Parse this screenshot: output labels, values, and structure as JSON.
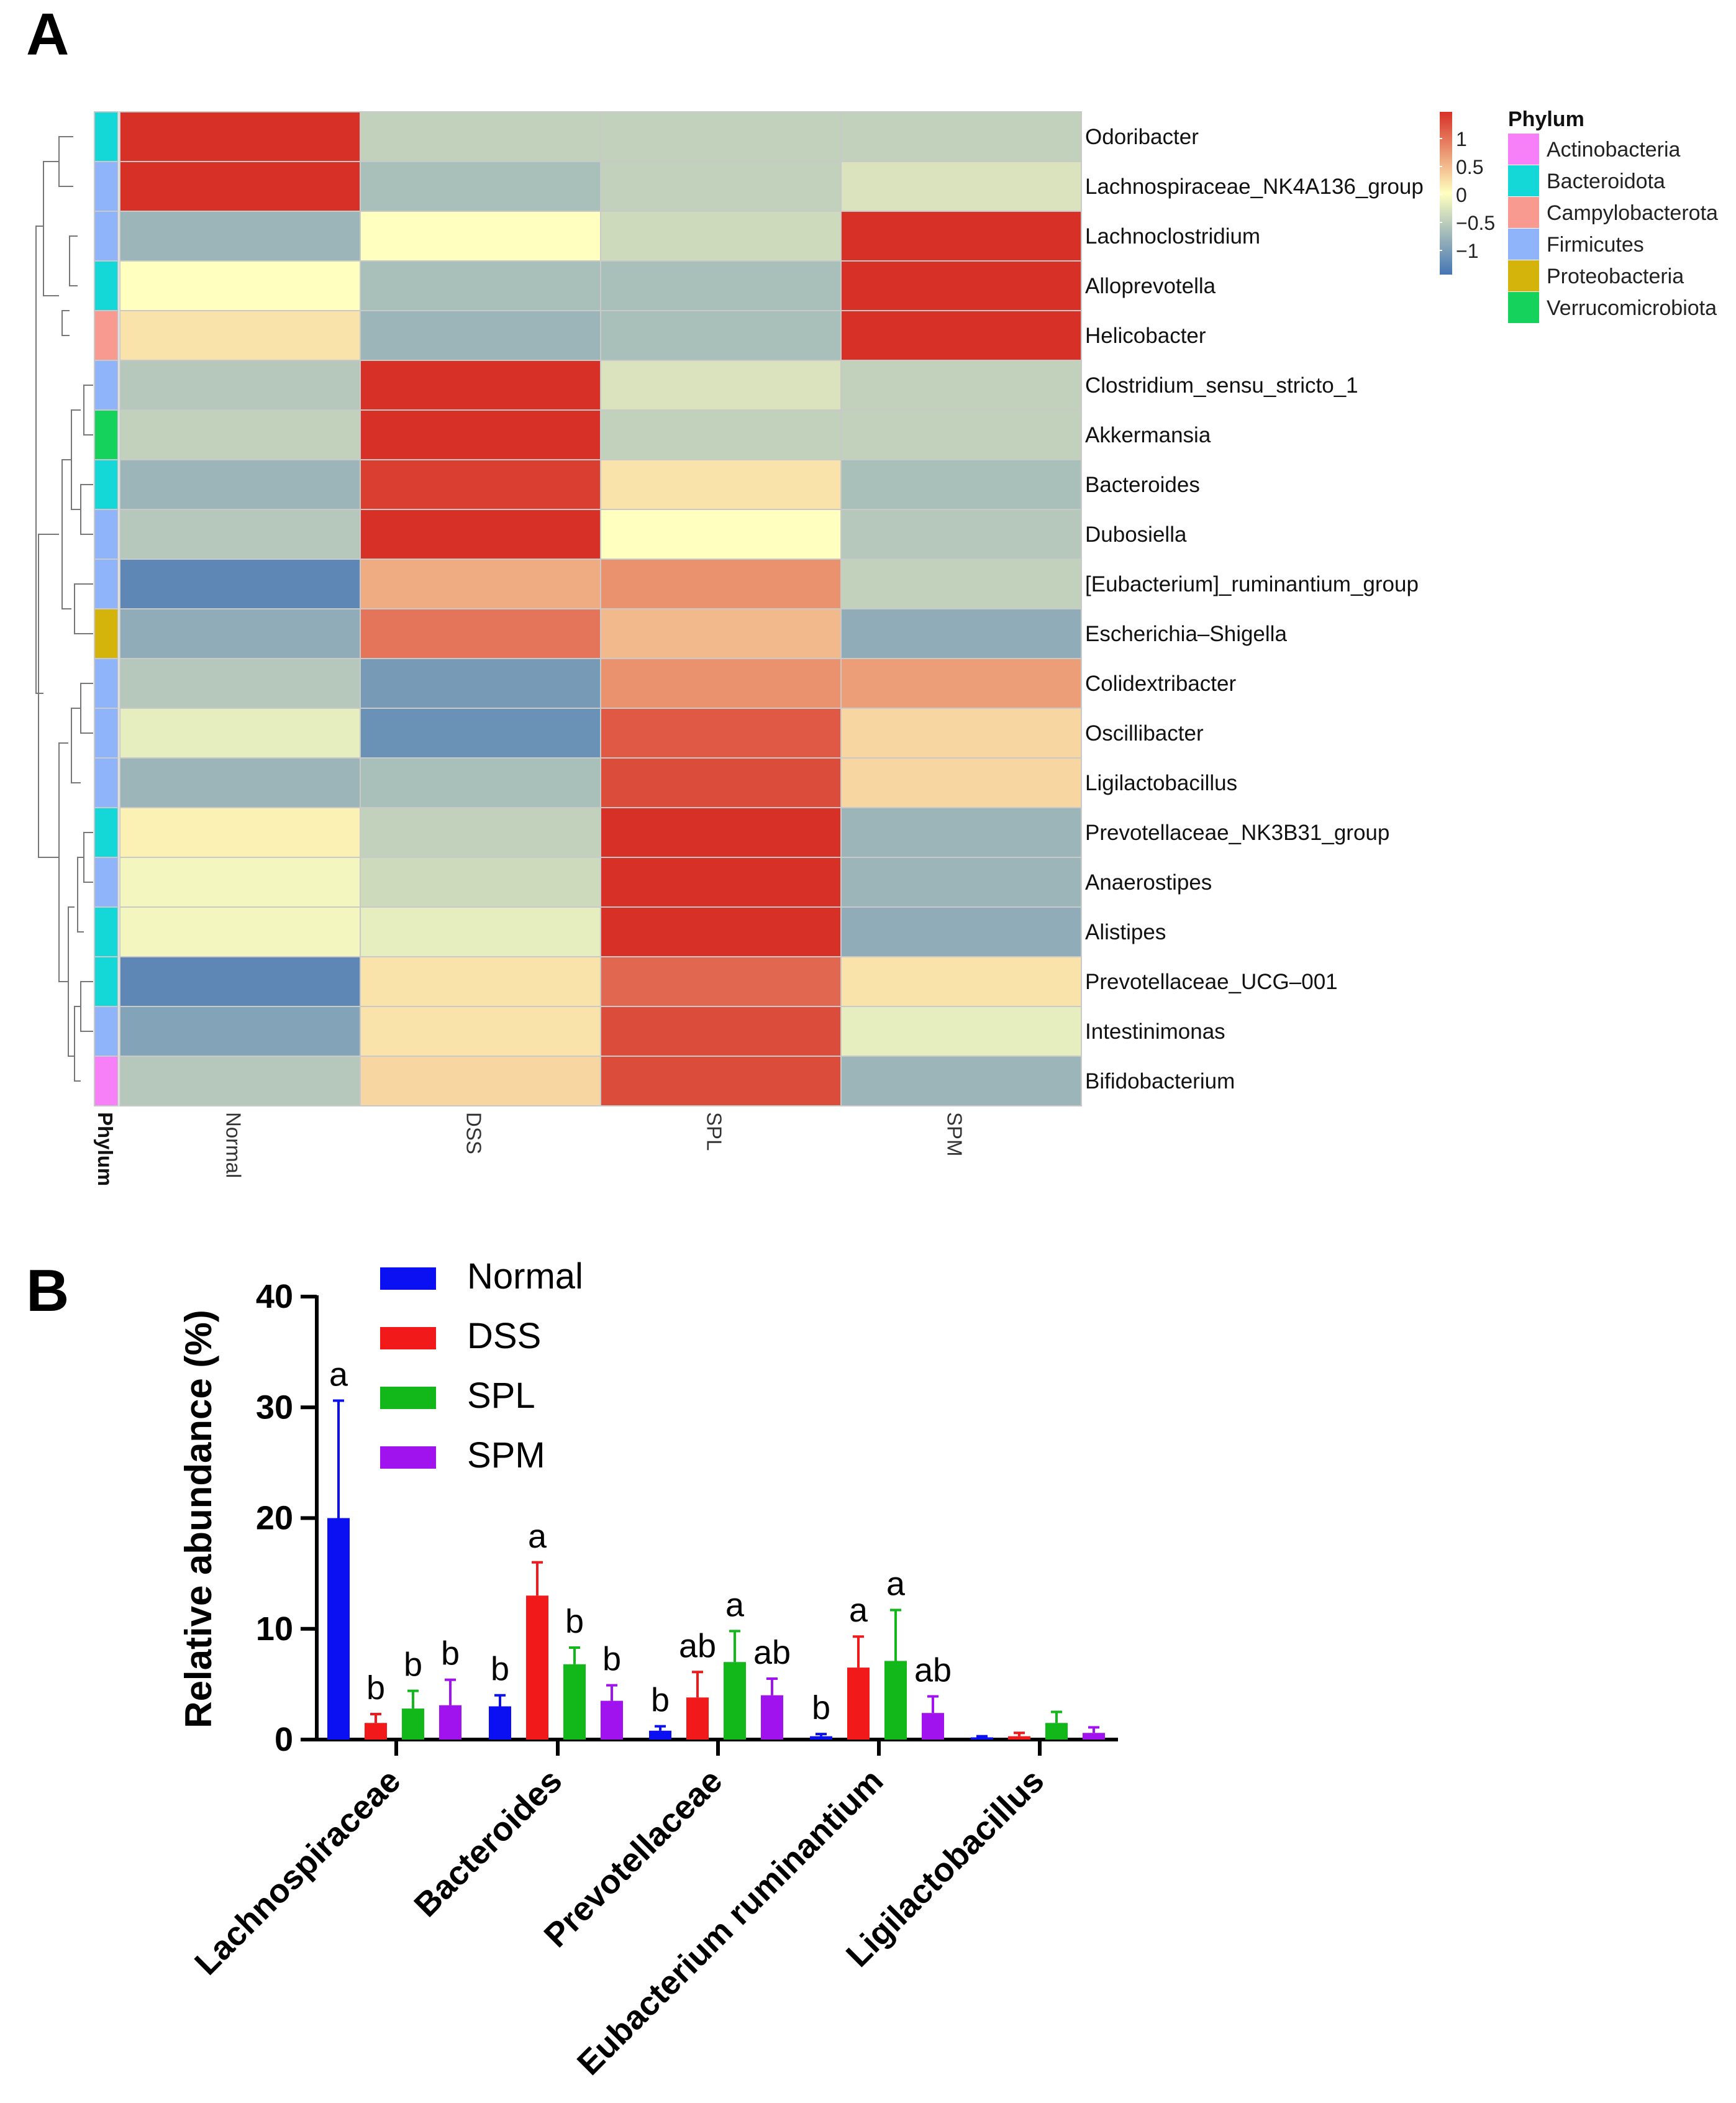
{
  "panel_a_label": "A",
  "panel_b_label": "B",
  "chart_data": [
    {
      "type": "heatmap",
      "columns": [
        "Normal",
        "DSS",
        "SPL",
        "SPM"
      ],
      "column_axis_title": "Phylum",
      "rows": [
        {
          "genus": "Odoribacter",
          "phylum": "Bacteroidota",
          "values": [
            1.5,
            -0.5,
            -0.5,
            -0.5
          ]
        },
        {
          "genus": "Lachnospiraceae_NK4A136_group",
          "phylum": "Firmicutes",
          "values": [
            1.5,
            -0.7,
            -0.5,
            -0.3
          ]
        },
        {
          "genus": "Lachnoclostridium",
          "phylum": "Firmicutes",
          "values": [
            -0.8,
            0.0,
            -0.4,
            1.5
          ]
        },
        {
          "genus": "Alloprevotella",
          "phylum": "Bacteroidota",
          "values": [
            0.0,
            -0.7,
            -0.7,
            1.5
          ]
        },
        {
          "genus": "Helicobacter",
          "phylum": "Campylobacterota",
          "values": [
            0.2,
            -0.8,
            -0.7,
            1.5
          ]
        },
        {
          "genus": "Clostridium_sensu_stricto_1",
          "phylum": "Firmicutes",
          "values": [
            -0.6,
            1.5,
            -0.3,
            -0.5
          ]
        },
        {
          "genus": "Akkermansia",
          "phylum": "Verrucomicrobiota",
          "values": [
            -0.5,
            1.5,
            -0.5,
            -0.5
          ]
        },
        {
          "genus": "Bacteroides",
          "phylum": "Bacteroidota",
          "values": [
            -0.8,
            1.4,
            0.2,
            -0.7
          ]
        },
        {
          "genus": "Dubosiella",
          "phylum": "Firmicutes",
          "values": [
            -0.6,
            1.5,
            0.0,
            -0.6
          ]
        },
        {
          "genus": "[Eubacterium]_ruminantium_group",
          "phylum": "Firmicutes",
          "values": [
            -1.3,
            0.6,
            0.8,
            -0.5
          ]
        },
        {
          "genus": "Escherichia–Shigella",
          "phylum": "Proteobacteria",
          "values": [
            -0.9,
            1.0,
            0.5,
            -0.9
          ]
        },
        {
          "genus": "Colidextribacter",
          "phylum": "Firmicutes",
          "values": [
            -0.6,
            -1.1,
            0.8,
            0.7
          ]
        },
        {
          "genus": "Oscillibacter",
          "phylum": "Firmicutes",
          "values": [
            -0.2,
            -1.2,
            1.2,
            0.3
          ]
        },
        {
          "genus": "Ligilactobacillus",
          "phylum": "Firmicutes",
          "values": [
            -0.8,
            -0.7,
            1.3,
            0.3
          ]
        },
        {
          "genus": "Prevotellaceae_NK3B31_group",
          "phylum": "Bacteroidota",
          "values": [
            0.1,
            -0.5,
            1.5,
            -0.8
          ]
        },
        {
          "genus": "Anaerostipes",
          "phylum": "Firmicutes",
          "values": [
            -0.1,
            -0.4,
            1.5,
            -0.8
          ]
        },
        {
          "genus": "Alistipes",
          "phylum": "Bacteroidota",
          "values": [
            -0.1,
            -0.2,
            1.5,
            -0.9
          ]
        },
        {
          "genus": "Prevotellaceae_UCG–001",
          "phylum": "Bacteroidota",
          "values": [
            -1.3,
            0.2,
            1.1,
            0.2
          ]
        },
        {
          "genus": "Intestinimonas",
          "phylum": "Firmicutes",
          "values": [
            -1.0,
            0.2,
            1.3,
            -0.2
          ]
        },
        {
          "genus": "Bifidobacterium",
          "phylum": "Actinobacteria",
          "values": [
            -0.6,
            0.3,
            1.3,
            -0.8
          ]
        }
      ],
      "colorbar": {
        "ticks": [
          "1",
          "0.5",
          "0",
          "−0.5",
          "−1"
        ],
        "range": [
          -1.5,
          1.5
        ],
        "low_color": "#4575b4",
        "mid_color": "#ffffbf",
        "high_color": "#d73027"
      },
      "legend_title": "Phylum",
      "phylum_colors": {
        "Actinobacteria": "#f77ff7",
        "Bacteroidota": "#14d8d8",
        "Campylobacterota": "#f89a8f",
        "Firmicutes": "#8fb4f9",
        "Proteobacteria": "#d4b40a",
        "Verrucomicrobiota": "#14d25c"
      },
      "legend_order": [
        "Actinobacteria",
        "Bacteroidota",
        "Campylobacterota",
        "Firmicutes",
        "Proteobacteria",
        "Verrucomicrobiota"
      ]
    },
    {
      "type": "bar",
      "ylabel": "Relative abundance (%)",
      "ylim": [
        0,
        40
      ],
      "yticks": [
        "0",
        "10",
        "20",
        "30",
        "40"
      ],
      "categories": [
        "Lachnospiraceae",
        "Bacteroides",
        "Prevotellaceae",
        "Eubacterium ruminantium",
        "Ligilactobacillus"
      ],
      "series": [
        {
          "name": "Normal",
          "color": "#0a10f2",
          "values": [
            20.0,
            3.0,
            0.8,
            0.3,
            0.2
          ],
          "errors": [
            10.6,
            1.0,
            0.4,
            0.2,
            0.1
          ],
          "labels": [
            "a",
            "b",
            "b",
            "b",
            ""
          ]
        },
        {
          "name": "DSS",
          "color": "#f2191a",
          "values": [
            1.5,
            13.0,
            3.8,
            6.5,
            0.3
          ],
          "errors": [
            0.8,
            3.0,
            2.3,
            2.8,
            0.3
          ],
          "labels": [
            "b",
            "a",
            "ab",
            "a",
            ""
          ]
        },
        {
          "name": "SPL",
          "color": "#12b81a",
          "values": [
            2.8,
            6.8,
            7.0,
            7.1,
            1.5
          ],
          "errors": [
            1.6,
            1.5,
            2.8,
            4.6,
            1.0
          ],
          "labels": [
            "b",
            "b",
            "a",
            "a",
            ""
          ]
        },
        {
          "name": "SPM",
          "color": "#a012ee",
          "values": [
            3.1,
            3.5,
            4.0,
            2.4,
            0.6
          ],
          "errors": [
            2.3,
            1.4,
            1.5,
            1.5,
            0.5
          ],
          "labels": [
            "b",
            "b",
            "ab",
            "ab",
            ""
          ]
        }
      ]
    }
  ]
}
